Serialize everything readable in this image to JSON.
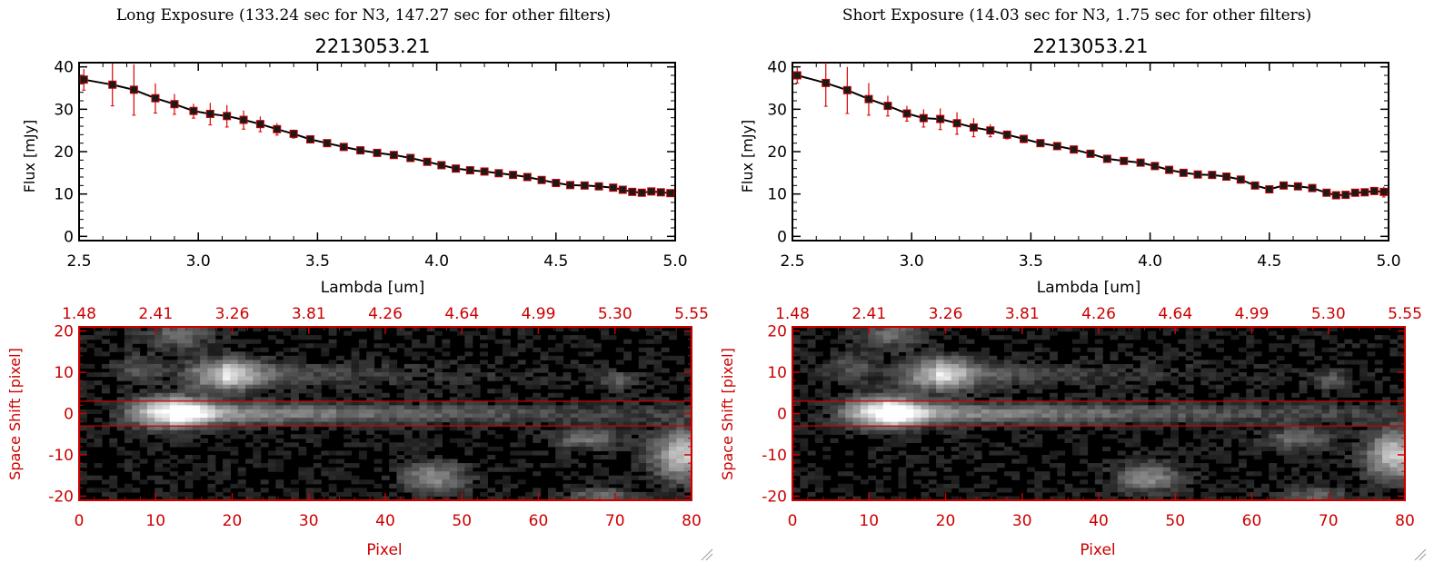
{
  "panels": [
    {
      "caption": "Long Exposure (133.24 sec for N3, 147.27 sec for other filters)",
      "spectrum": {
        "title": "2213053.21",
        "xlabel": "Lambda [um]",
        "ylabel": "Flux [mJy]",
        "xticks": [
          "2.5",
          "3.0",
          "3.5",
          "4.0",
          "4.5",
          "5.0"
        ],
        "yticks": [
          "0",
          "10",
          "20",
          "30",
          "40"
        ]
      },
      "image": {
        "xlabel": "Pixel",
        "ylabel": "Space Shift [pixel]",
        "xticks": [
          "0",
          "10",
          "20",
          "30",
          "40",
          "50",
          "60",
          "70",
          "80"
        ],
        "yticks": [
          "20",
          "10",
          "0",
          "-10",
          "-20"
        ],
        "topticks": [
          "1.48",
          "2.41",
          "3.26",
          "3.81",
          "4.26",
          "4.64",
          "4.99",
          "5.30",
          "5.55"
        ]
      }
    },
    {
      "caption": "Short Exposure (14.03 sec for N3, 1.75 sec for other filters)",
      "spectrum": {
        "title": "2213053.21",
        "xlabel": "Lambda [um]",
        "ylabel": "Flux [mJy]",
        "xticks": [
          "2.5",
          "3.0",
          "3.5",
          "4.0",
          "4.5",
          "5.0"
        ],
        "yticks": [
          "0",
          "10",
          "20",
          "30",
          "40"
        ]
      },
      "image": {
        "xlabel": "Pixel",
        "ylabel": "Space Shift [pixel]",
        "xticks": [
          "0",
          "10",
          "20",
          "30",
          "40",
          "50",
          "60",
          "70",
          "80"
        ],
        "yticks": [
          "20",
          "10",
          "0",
          "-10",
          "-20"
        ],
        "topticks": [
          "1.48",
          "2.41",
          "3.26",
          "3.81",
          "4.26",
          "4.64",
          "4.99",
          "5.30",
          "5.55"
        ]
      }
    }
  ],
  "colors": {
    "line": "#000000",
    "marker": "#1a1a1a",
    "marker_edge": "#cc0000",
    "errorbar": "#dd0000",
    "image_frame": "#cc0000",
    "image_bg": "#000000"
  },
  "chart_data": [
    {
      "type": "line",
      "title": "2213053.21",
      "xlabel": "Lambda [um]",
      "ylabel": "Flux [mJy]",
      "xlim": [
        2.5,
        5.0
      ],
      "ylim": [
        -1,
        41
      ],
      "x": [
        2.52,
        2.64,
        2.73,
        2.82,
        2.9,
        2.98,
        3.05,
        3.12,
        3.19,
        3.26,
        3.33,
        3.4,
        3.47,
        3.54,
        3.61,
        3.68,
        3.75,
        3.82,
        3.89,
        3.96,
        4.02,
        4.08,
        4.14,
        4.2,
        4.26,
        4.32,
        4.38,
        4.44,
        4.5,
        4.56,
        4.62,
        4.68,
        4.74,
        4.78,
        4.82,
        4.86,
        4.9,
        4.94,
        4.98
      ],
      "y": [
        37.0,
        35.8,
        34.6,
        32.6,
        31.2,
        29.6,
        28.9,
        28.4,
        27.5,
        26.5,
        25.3,
        24.2,
        22.9,
        22.0,
        21.1,
        20.3,
        19.7,
        19.2,
        18.5,
        17.6,
        16.8,
        16.0,
        15.6,
        15.3,
        14.9,
        14.5,
        14.0,
        13.3,
        12.6,
        12.1,
        12.0,
        11.8,
        11.5,
        11.0,
        10.5,
        10.3,
        10.6,
        10.4,
        10.2
      ],
      "yerr": [
        2.5,
        5.0,
        6.0,
        3.5,
        2.4,
        1.7,
        2.6,
        2.6,
        2.2,
        1.8,
        1.4,
        1.0,
        0.8,
        0.7,
        0.6,
        0.6,
        0.6,
        0.6,
        0.6,
        0.6,
        0.6,
        0.6,
        0.6,
        0.6,
        0.6,
        0.6,
        0.6,
        0.6,
        0.6,
        0.6,
        0.6,
        0.6,
        0.6,
        0.6,
        0.6,
        0.6,
        0.6,
        0.6,
        0.8
      ]
    },
    {
      "type": "line",
      "title": "2213053.21",
      "xlabel": "Lambda [um]",
      "ylabel": "Flux [mJy]",
      "xlim": [
        2.5,
        5.0
      ],
      "ylim": [
        -1,
        41
      ],
      "x": [
        2.52,
        2.64,
        2.73,
        2.82,
        2.9,
        2.98,
        3.05,
        3.12,
        3.19,
        3.26,
        3.33,
        3.4,
        3.47,
        3.54,
        3.61,
        3.68,
        3.75,
        3.82,
        3.89,
        3.96,
        4.02,
        4.08,
        4.14,
        4.2,
        4.26,
        4.32,
        4.38,
        4.44,
        4.5,
        4.56,
        4.62,
        4.68,
        4.74,
        4.78,
        4.82,
        4.86,
        4.9,
        4.94,
        4.98
      ],
      "y": [
        38.0,
        36.2,
        34.5,
        32.4,
        30.8,
        29.0,
        27.9,
        27.7,
        26.7,
        25.7,
        25.0,
        24.0,
        23.0,
        22.0,
        21.3,
        20.5,
        19.5,
        18.3,
        17.8,
        17.4,
        16.6,
        15.7,
        15.0,
        14.6,
        14.5,
        14.1,
        13.4,
        12.0,
        11.1,
        12.0,
        11.8,
        11.4,
        10.3,
        9.7,
        9.8,
        10.3,
        10.4,
        10.7,
        10.5
      ],
      "yerr": [
        1.8,
        5.5,
        5.5,
        3.8,
        2.4,
        1.8,
        2.1,
        2.5,
        2.6,
        2.2,
        1.5,
        1.0,
        0.9,
        0.7,
        0.6,
        0.6,
        0.6,
        0.6,
        0.6,
        0.6,
        0.6,
        0.6,
        0.6,
        0.6,
        0.6,
        0.6,
        0.6,
        0.6,
        0.6,
        0.6,
        0.6,
        0.6,
        0.6,
        0.6,
        0.6,
        0.6,
        0.8,
        0.8,
        1.2
      ]
    },
    {
      "type": "heatmap",
      "xlabel": "Pixel",
      "ylabel": "Space Shift [pixel]",
      "xlim": [
        0,
        80
      ],
      "ylim": [
        -21,
        21
      ],
      "top_axis_ticks": [
        "1.48",
        "2.41",
        "3.26",
        "3.81",
        "4.26",
        "4.64",
        "4.99",
        "5.30",
        "5.55"
      ],
      "band_limits": [
        -3,
        3
      ]
    },
    {
      "type": "heatmap",
      "xlabel": "Pixel",
      "ylabel": "Space Shift [pixel]",
      "xlim": [
        0,
        80
      ],
      "ylim": [
        -21,
        21
      ],
      "top_axis_ticks": [
        "1.48",
        "2.41",
        "3.26",
        "3.81",
        "4.26",
        "4.64",
        "4.99",
        "5.30",
        "5.55"
      ],
      "band_limits": [
        -3,
        3
      ]
    }
  ]
}
